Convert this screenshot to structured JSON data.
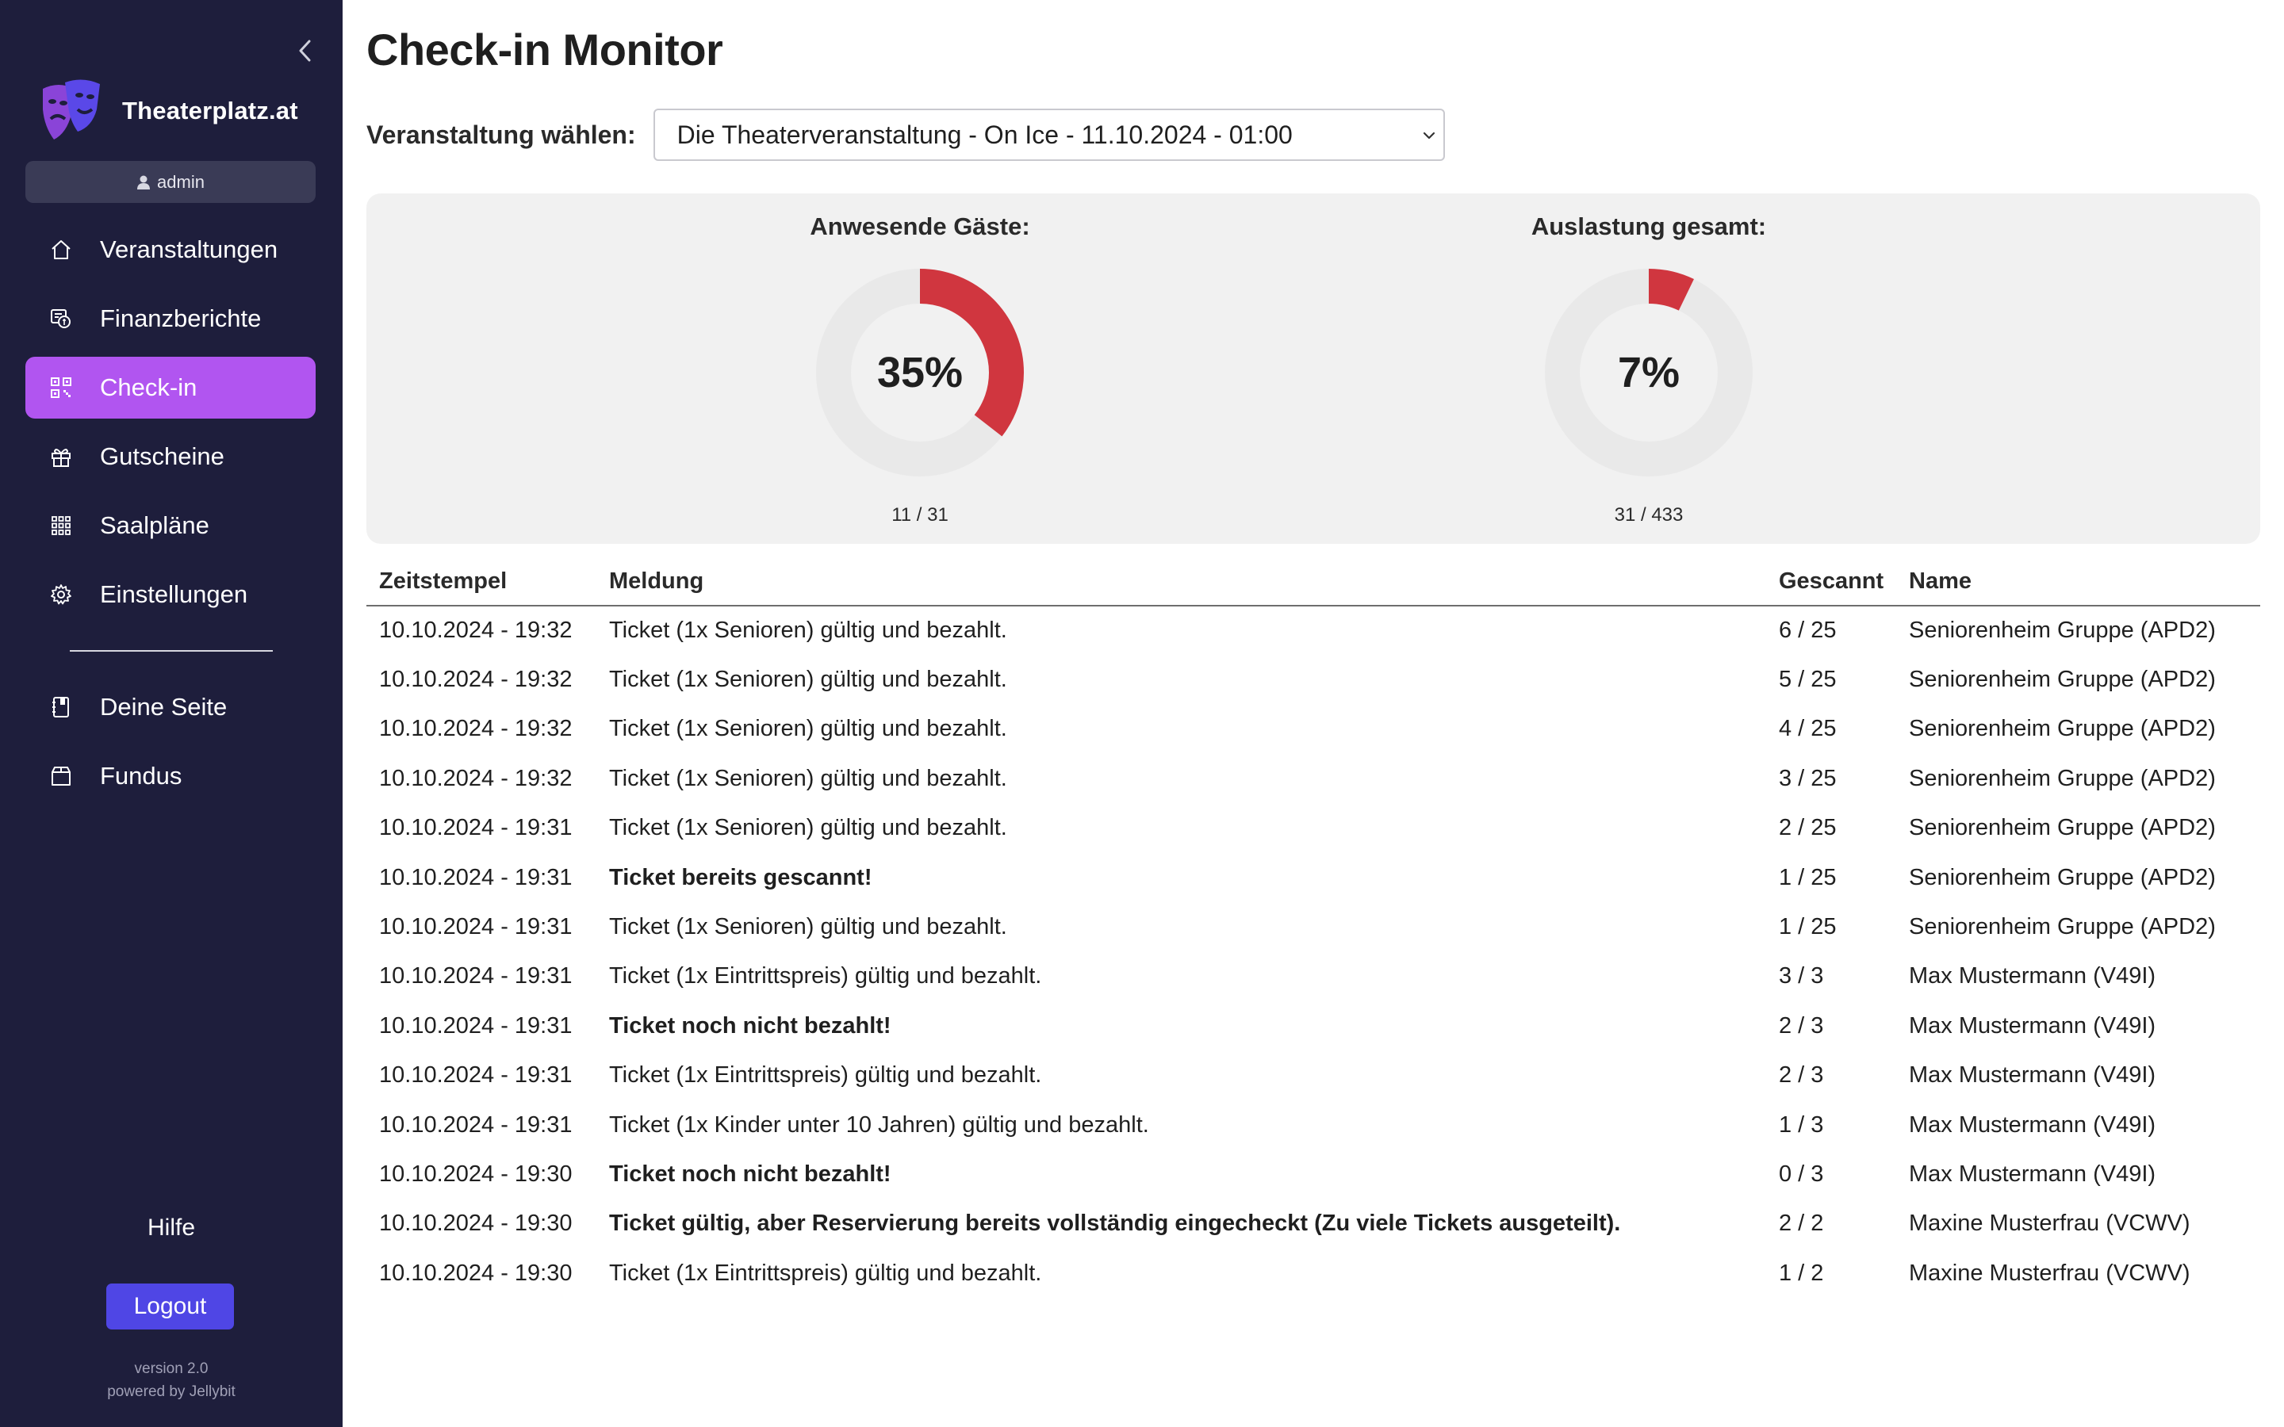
{
  "app": {
    "name": "Theaterplatz.at",
    "user": "admin",
    "version": "version 2.0",
    "powered_by": "powered by Jellybit"
  },
  "colors": {
    "sidebar_bg": "#1e1e3c",
    "active_nav": "#b155f0",
    "logout_button": "#4f46e5",
    "donut_fill": "#d0363f",
    "donut_track": "#e9e9e9",
    "success_text": "#3d9a2a",
    "error_text": "#dc3028"
  },
  "sidebar": {
    "items": [
      {
        "label": "Veranstaltungen",
        "icon": "home-icon",
        "active": false
      },
      {
        "label": "Finanzberichte",
        "icon": "finance-report-icon",
        "active": false
      },
      {
        "label": "Check-in",
        "icon": "qr-code-icon",
        "active": true
      },
      {
        "label": "Gutscheine",
        "icon": "gift-icon",
        "active": false
      },
      {
        "label": "Saalpläne",
        "icon": "seat-grid-icon",
        "active": false
      },
      {
        "label": "Einstellungen",
        "icon": "gear-icon",
        "active": false
      }
    ],
    "secondary_items": [
      {
        "label": "Deine Seite",
        "icon": "page-icon"
      },
      {
        "label": "Fundus",
        "icon": "archive-box-icon"
      }
    ],
    "help_label": "Hilfe",
    "logout_label": "Logout"
  },
  "page": {
    "title": "Check-in Monitor",
    "event_label": "Veranstaltung wählen:",
    "event_selected": "Die Theaterveranstaltung - On Ice - 11.10.2024 - 01:00"
  },
  "stats": {
    "present": {
      "title": "Anwesende Gäste:",
      "percent_label": "35%",
      "count_label": "11 / 31",
      "fraction": 0.355
    },
    "utilization": {
      "title": "Auslastung gesamt:",
      "percent_label": "7%",
      "count_label": "31 / 433",
      "fraction": 0.0716
    }
  },
  "table": {
    "headers": {
      "time": "Zeitstempel",
      "message": "Meldung",
      "scanned": "Gescannt",
      "name": "Name"
    },
    "rows": [
      {
        "time": "10.10.2024 - 19:32",
        "message": "Ticket (1x Senioren) gültig und bezahlt.",
        "status": "ok",
        "scanned": "6 / 25",
        "name": "Seniorenheim Gruppe  (APD2)"
      },
      {
        "time": "10.10.2024 - 19:32",
        "message": "Ticket (1x Senioren) gültig und bezahlt.",
        "status": "ok",
        "scanned": "5 / 25",
        "name": "Seniorenheim Gruppe  (APD2)"
      },
      {
        "time": "10.10.2024 - 19:32",
        "message": "Ticket (1x Senioren) gültig und bezahlt.",
        "status": "ok",
        "scanned": "4 / 25",
        "name": "Seniorenheim Gruppe  (APD2)"
      },
      {
        "time": "10.10.2024 - 19:32",
        "message": "Ticket (1x Senioren) gültig und bezahlt.",
        "status": "ok",
        "scanned": "3 / 25",
        "name": "Seniorenheim Gruppe  (APD2)"
      },
      {
        "time": "10.10.2024 - 19:31",
        "message": "Ticket (1x Senioren) gültig und bezahlt.",
        "status": "ok",
        "scanned": "2 / 25",
        "name": "Seniorenheim Gruppe  (APD2)"
      },
      {
        "time": "10.10.2024 - 19:31",
        "message": "Ticket bereits gescannt!",
        "status": "error",
        "scanned": "1 / 25",
        "name": "Seniorenheim Gruppe  (APD2)"
      },
      {
        "time": "10.10.2024 - 19:31",
        "message": "Ticket (1x Senioren) gültig und bezahlt.",
        "status": "ok",
        "scanned": "1 / 25",
        "name": "Seniorenheim Gruppe  (APD2)"
      },
      {
        "time": "10.10.2024 - 19:31",
        "message": "Ticket (1x Eintrittspreis) gültig und bezahlt.",
        "status": "ok",
        "scanned": "3 / 3",
        "name": "Max Mustermann  (V49I)"
      },
      {
        "time": "10.10.2024 - 19:31",
        "message": "Ticket noch nicht bezahlt!",
        "status": "error",
        "scanned": "2 / 3",
        "name": "Max Mustermann  (V49I)"
      },
      {
        "time": "10.10.2024 - 19:31",
        "message": "Ticket (1x Eintrittspreis) gültig und bezahlt.",
        "status": "ok",
        "scanned": "2 / 3",
        "name": "Max Mustermann  (V49I)"
      },
      {
        "time": "10.10.2024 - 19:31",
        "message": "Ticket (1x Kinder unter 10 Jahren) gültig und bezahlt.",
        "status": "ok",
        "scanned": "1 / 3",
        "name": "Max Mustermann  (V49I)"
      },
      {
        "time": "10.10.2024 - 19:30",
        "message": "Ticket noch nicht bezahlt!",
        "status": "error",
        "scanned": "0 / 3",
        "name": "Max Mustermann  (V49I)"
      },
      {
        "time": "10.10.2024 - 19:30",
        "message": "Ticket gültig, aber Reservierung bereits vollständig eingecheckt (Zu viele Tickets ausgeteilt).",
        "status": "error",
        "scanned": "2 / 2",
        "name": "Maxine Musterfrau  (VCWV)"
      },
      {
        "time": "10.10.2024 - 19:30",
        "message": "Ticket (1x Eintrittspreis) gültig und bezahlt.",
        "status": "ok",
        "scanned": "1 / 2",
        "name": "Maxine Musterfrau  (VCWV)"
      }
    ]
  }
}
